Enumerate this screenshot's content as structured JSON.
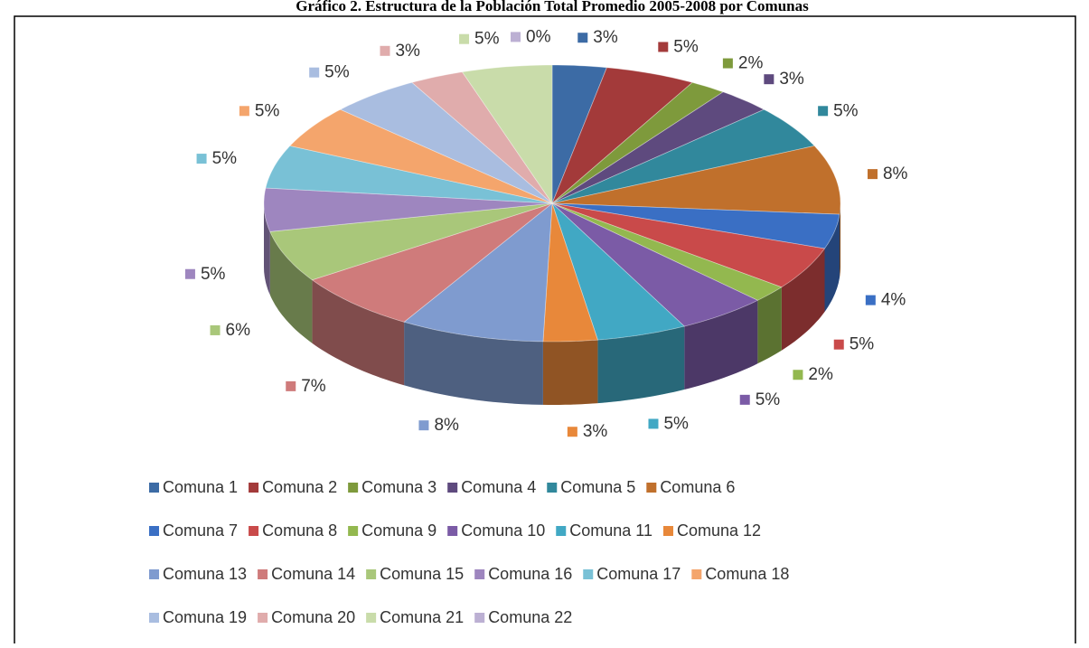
{
  "chart_data": {
    "type": "pie",
    "three_d": true,
    "title": "Gráfico 2. Estructura de la Población Total Promedio 2005-2008 por Comunas",
    "categories": [
      "Comuna 1",
      "Comuna 2",
      "Comuna 3",
      "Comuna 4",
      "Comuna 5",
      "Comuna 6",
      "Comuna 7",
      "Comuna 8",
      "Comuna 9",
      "Comuna 10",
      "Comuna 11",
      "Comuna 12",
      "Comuna 13",
      "Comuna 14",
      "Comuna 15",
      "Comuna 16",
      "Comuna 17",
      "Comuna 18",
      "Comuna 19",
      "Comuna 20",
      "Comuna 21",
      "Comuna 22"
    ],
    "values": [
      3,
      5,
      2,
      3,
      5,
      8,
      4,
      5,
      2,
      5,
      5,
      3,
      8,
      7,
      6,
      5,
      5,
      5,
      5,
      3,
      5,
      0
    ],
    "value_labels": [
      "3%",
      "5%",
      "2%",
      "3%",
      "5%",
      "8%",
      "4%",
      "5%",
      "2%",
      "5%",
      "5%",
      "3%",
      "8%",
      "7%",
      "6%",
      "5%",
      "5%",
      "5%",
      "5%",
      "3%",
      "5%",
      "0%"
    ],
    "colors": [
      "#3c6ba5",
      "#a33a3a",
      "#7e9a3c",
      "#5e4a7e",
      "#31889c",
      "#c0702c",
      "#3a6fc4",
      "#c94a4a",
      "#93b84f",
      "#7b5ba6",
      "#41a8c4",
      "#e8883a",
      "#7f9bcf",
      "#cf7b7b",
      "#a9c77a",
      "#9e86bf",
      "#79c1d6",
      "#f4a56c",
      "#a9bde0",
      "#e0acac",
      "#c9dcaa",
      "#bcb0d3"
    ],
    "legend": "bottom"
  }
}
